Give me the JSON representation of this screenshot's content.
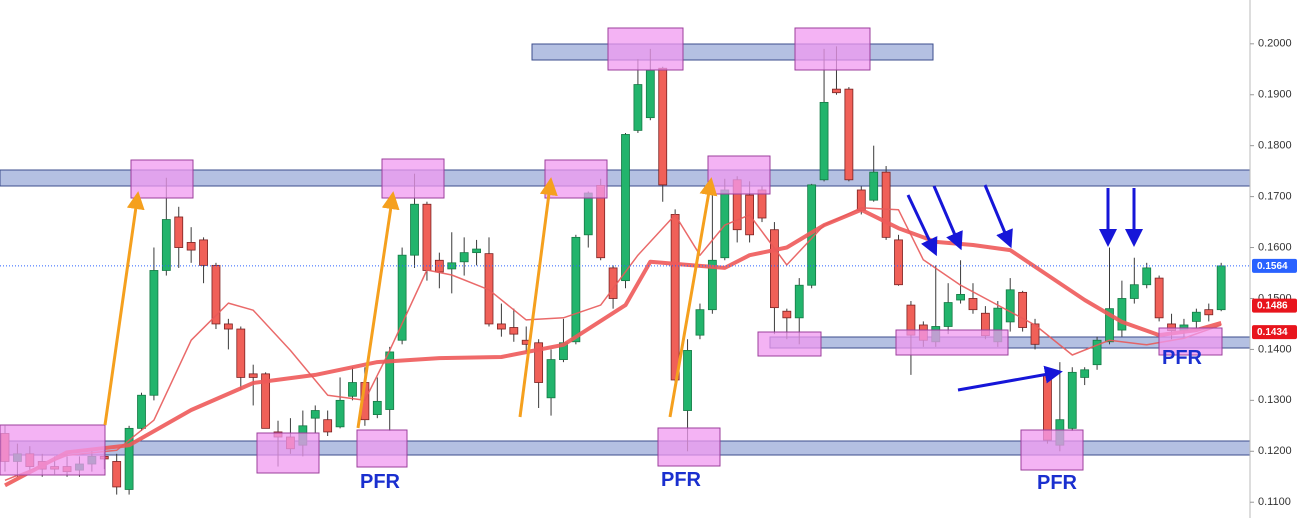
{
  "chart_data": {
    "type": "candlestick",
    "up_color": "#22b46c",
    "down_color": "#f06058",
    "open": [
      0.1235,
      0.118,
      0.1195,
      0.118,
      0.117,
      0.117,
      0.1163,
      0.1175,
      0.119,
      0.118,
      0.1125,
      0.1245,
      0.131,
      0.1555,
      0.166,
      0.161,
      0.1615,
      0.1565,
      0.145,
      0.144,
      0.1352,
      0.1352,
      0.1238,
      0.1228,
      0.1212,
      0.1265,
      0.1262,
      0.1248,
      0.1308,
      0.1335,
      0.1272,
      0.1282,
      0.1418,
      0.1585,
      0.1685,
      0.1575,
      0.1558,
      0.1572,
      0.159,
      0.1588,
      0.145,
      0.1443,
      0.1418,
      0.1413,
      0.1305,
      0.138,
      0.1415,
      0.1625,
      0.1722,
      0.156,
      0.1535,
      0.183,
      0.1855,
      0.1952,
      0.1665,
      0.128,
      0.1428,
      0.1478,
      0.158,
      0.1733,
      0.1703,
      0.1713,
      0.1635,
      0.1475,
      0.1462,
      0.1526,
      0.1733,
      0.1911,
      0.1911,
      0.1713,
      0.1693,
      0.1748,
      0.1615,
      0.1487,
      0.1448,
      0.1415,
      0.1445,
      0.1497,
      0.15,
      0.1471,
      0.1415,
      0.1454,
      0.1512,
      0.145,
      0.135,
      0.1212,
      0.1245,
      0.1345,
      0.137,
      0.1415,
      0.1438,
      0.15,
      0.1527,
      0.154,
      0.145,
      0.1437,
      0.1455,
      0.1478,
      0.1478
    ],
    "high": [
      0.125,
      0.1215,
      0.121,
      0.1195,
      0.119,
      0.119,
      0.119,
      0.12,
      0.1205,
      0.1195,
      0.125,
      0.1315,
      0.16,
      0.1737,
      0.168,
      0.164,
      0.162,
      0.157,
      0.146,
      0.1445,
      0.137,
      0.1355,
      0.126,
      0.1265,
      0.128,
      0.129,
      0.128,
      0.1345,
      0.1365,
      0.1365,
      0.1345,
      0.1405,
      0.16,
      0.1745,
      0.169,
      0.159,
      0.163,
      0.162,
      0.1615,
      0.162,
      0.149,
      0.148,
      0.1445,
      0.142,
      0.14,
      0.146,
      0.1625,
      0.171,
      0.1735,
      0.1565,
      0.1825,
      0.197,
      0.199,
      0.1955,
      0.1675,
      0.142,
      0.149,
      0.1705,
      0.1735,
      0.174,
      0.173,
      0.172,
      0.165,
      0.148,
      0.154,
      0.1725,
      0.199,
      0.1995,
      0.1915,
      0.172,
      0.18,
      0.176,
      0.1625,
      0.1495,
      0.1455,
      0.1565,
      0.153,
      0.1575,
      0.153,
      0.1485,
      0.1495,
      0.154,
      0.1515,
      0.146,
      0.1355,
      0.1375,
      0.1365,
      0.1365,
      0.1425,
      0.16,
      0.1535,
      0.158,
      0.157,
      0.1545,
      0.147,
      0.146,
      0.148,
      0.149,
      0.157
    ],
    "low": [
      0.116,
      0.115,
      0.116,
      0.115,
      0.1155,
      0.115,
      0.115,
      0.116,
      0.1165,
      0.1115,
      0.1115,
      0.124,
      0.13,
      0.1545,
      0.156,
      0.157,
      0.153,
      0.144,
      0.14,
      0.132,
      0.129,
      0.1245,
      0.117,
      0.1195,
      0.119,
      0.1235,
      0.123,
      0.1245,
      0.13,
      0.125,
      0.1265,
      0.124,
      0.141,
      0.156,
      0.1535,
      0.152,
      0.151,
      0.1545,
      0.1565,
      0.1445,
      0.1425,
      0.1415,
      0.1395,
      0.1285,
      0.127,
      0.1375,
      0.141,
      0.16,
      0.1575,
      0.148,
      0.152,
      0.1825,
      0.185,
      0.169,
      0.132,
      0.12,
      0.142,
      0.147,
      0.1575,
      0.161,
      0.161,
      0.165,
      0.143,
      0.142,
      0.141,
      0.152,
      0.173,
      0.19,
      0.173,
      0.1665,
      0.169,
      0.1615,
      0.1525,
      0.135,
      0.1405,
      0.1405,
      0.143,
      0.149,
      0.147,
      0.142,
      0.1405,
      0.1435,
      0.1435,
      0.14,
      0.1215,
      0.12,
      0.124,
      0.133,
      0.136,
      0.141,
      0.1425,
      0.149,
      0.152,
      0.1455,
      0.142,
      0.1425,
      0.144,
      0.1455,
      0.1475
    ],
    "close": [
      0.118,
      0.1195,
      0.117,
      0.1165,
      0.1165,
      0.116,
      0.1175,
      0.119,
      0.1185,
      0.113,
      0.1245,
      0.131,
      0.1555,
      0.1655,
      0.16,
      0.1595,
      0.1565,
      0.145,
      0.144,
      0.1345,
      0.1345,
      0.1245,
      0.1228,
      0.1205,
      0.125,
      0.128,
      0.1238,
      0.13,
      0.1335,
      0.1262,
      0.1298,
      0.1395,
      0.1585,
      0.1685,
      0.1555,
      0.1552,
      0.157,
      0.159,
      0.1597,
      0.145,
      0.144,
      0.143,
      0.141,
      0.1335,
      0.138,
      0.1413,
      0.162,
      0.1707,
      0.158,
      0.15,
      0.1822,
      0.192,
      0.1948,
      0.1723,
      0.134,
      0.1398,
      0.1478,
      0.1575,
      0.1713,
      0.1635,
      0.1625,
      0.1658,
      0.1482,
      0.1462,
      0.1526,
      0.1723,
      0.1885,
      0.1904,
      0.1733,
      0.1673,
      0.1748,
      0.162,
      0.1527,
      0.1428,
      0.1418,
      0.1445,
      0.1492,
      0.1508,
      0.1478,
      0.1427,
      0.1481,
      0.1517,
      0.1443,
      0.141,
      0.1222,
      0.1262,
      0.1355,
      0.136,
      0.1418,
      0.148,
      0.15,
      0.1527,
      0.156,
      0.1462,
      0.1437,
      0.1448,
      0.1473,
      0.1468,
      0.1564
    ],
    "moving_averages": [
      {
        "color": "#ee5a5a",
        "line_width": 4,
        "x": [
          0,
          5,
          10,
          15,
          20,
          25,
          30,
          35,
          40,
          45,
          50,
          52,
          55,
          58,
          60,
          63,
          66,
          69,
          72,
          75,
          78,
          81,
          84,
          87,
          90,
          93,
          96,
          98
        ],
        "values": [
          0.1133,
          0.1198,
          0.1212,
          0.1281,
          0.1334,
          0.135,
          0.1375,
          0.1383,
          0.1385,
          0.1409,
          0.1487,
          0.1572,
          0.1566,
          0.156,
          0.1585,
          0.16,
          0.1644,
          0.1674,
          0.1638,
          0.1611,
          0.1605,
          0.1595,
          0.1546,
          0.1497,
          0.1454,
          0.1428,
          0.1438,
          0.1452
        ]
      },
      {
        "color": "#e85a5a",
        "line_width": 1.5,
        "x": [
          0,
          5,
          9,
          12,
          15,
          18,
          20,
          23,
          26,
          29,
          31,
          34,
          36,
          39,
          42,
          45,
          48,
          51,
          54,
          56,
          58,
          60,
          63,
          66,
          69,
          72,
          74,
          77,
          80,
          83,
          86,
          89,
          92,
          95,
          98
        ],
        "values": [
          0.1143,
          0.1192,
          0.1202,
          0.1261,
          0.1418,
          0.1491,
          0.1477,
          0.1398,
          0.131,
          0.13,
          0.1398,
          0.1556,
          0.1546,
          0.1517,
          0.1458,
          0.1462,
          0.1487,
          0.1585,
          0.1664,
          0.1585,
          0.1644,
          0.1664,
          0.1566,
          0.1644,
          0.1678,
          0.1674,
          0.1576,
          0.1526,
          0.1487,
          0.1448,
          0.1389,
          0.1418,
          0.1409,
          0.1422,
          0.1448
        ]
      }
    ],
    "price_tags": [
      {
        "value": 0.1564,
        "color": "#2962ff"
      },
      {
        "value": 0.1486,
        "color": "#e8141c"
      },
      {
        "value": 0.1434,
        "color": "#e8141c"
      }
    ],
    "annotations": [
      "PFR",
      "PFR",
      "PFR",
      "PFR"
    ],
    "ylim": [
      0.1069,
      0.2086
    ],
    "yticks": [
      {
        "value": 0.11,
        "label": "0.1100"
      },
      {
        "value": 0.12,
        "label": "0.1200"
      },
      {
        "value": 0.13,
        "label": "0.1300"
      },
      {
        "value": 0.14,
        "label": "0.1400"
      },
      {
        "value": 0.15,
        "label": "0.1500"
      },
      {
        "value": 0.16,
        "label": "0.1600"
      },
      {
        "value": 0.17,
        "label": "0.1700"
      },
      {
        "value": 0.18,
        "label": "0.1800"
      },
      {
        "value": 0.19,
        "label": "0.1900"
      },
      {
        "value": 0.2,
        "label": "0.2000"
      }
    ]
  }
}
